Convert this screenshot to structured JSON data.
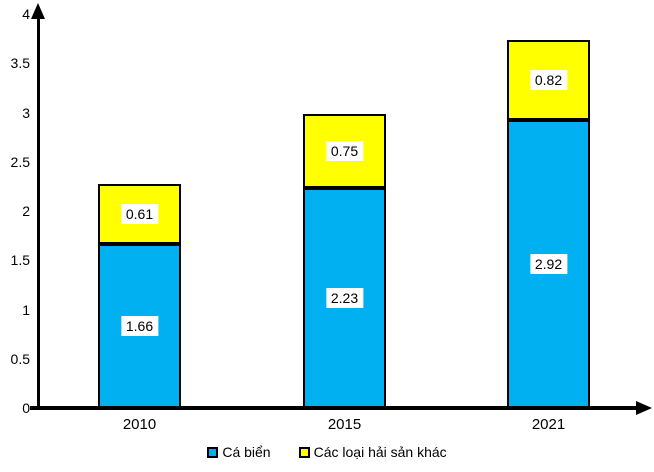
{
  "chart_data": {
    "type": "bar",
    "stacked": true,
    "categories": [
      "2010",
      "2015",
      "2021"
    ],
    "series": [
      {
        "name": "Cá biển",
        "color": "#00B0F0",
        "values": [
          1.66,
          2.23,
          2.92
        ],
        "labels": [
          "1.66",
          "2.23",
          "2.92"
        ]
      },
      {
        "name": "Các loại hải sản khác",
        "color": "#FFFF00",
        "values": [
          0.61,
          0.75,
          0.82
        ],
        "labels": [
          "0.61",
          "0.75",
          "0.82"
        ]
      }
    ],
    "ylim": [
      0,
      4
    ],
    "y_ticks": [
      "0",
      "0.5",
      "1",
      "1.5",
      "2",
      "2.5",
      "3",
      "3.5",
      "4"
    ],
    "grid": false,
    "legend_position": "bottom",
    "axis_arrows": true,
    "bar_border_color": "#000000",
    "value_label_bg": "#FFFFFF",
    "axis_color": "#000000"
  }
}
